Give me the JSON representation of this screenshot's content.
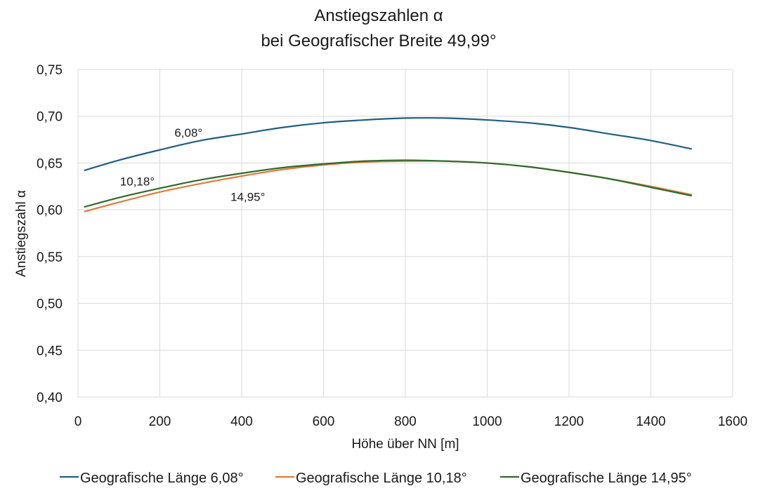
{
  "chart_data": {
    "type": "line",
    "title_line1": "Anstiegszahlen α",
    "title_line2": "bei Geografischer Breite 49,99°",
    "xlabel": "Höhe über NN [m]",
    "ylabel": "Anstiegszahl α",
    "xlim": [
      0,
      1600
    ],
    "ylim": [
      0.4,
      0.75
    ],
    "x_ticks": [
      0,
      200,
      400,
      600,
      800,
      1000,
      1200,
      1400,
      1600
    ],
    "x_tick_labels": [
      "0",
      "200",
      "400",
      "600",
      "800",
      "1000",
      "1200",
      "1400",
      "1600"
    ],
    "y_ticks": [
      0.4,
      0.45,
      0.5,
      0.55,
      0.6,
      0.65,
      0.7,
      0.75
    ],
    "y_tick_labels": [
      "0,40",
      "0,45",
      "0,50",
      "0,55",
      "0,60",
      "0,65",
      "0,70",
      "0,75"
    ],
    "grid": true,
    "legend_position": "bottom",
    "x": [
      15,
      100,
      200,
      300,
      400,
      500,
      600,
      700,
      800,
      900,
      1000,
      1100,
      1200,
      1300,
      1400,
      1500
    ],
    "series": [
      {
        "name": "Geografische Länge 6,08°",
        "color": "#1f5f7f",
        "values": [
          0.642,
          0.653,
          0.664,
          0.674,
          0.681,
          0.688,
          0.693,
          0.696,
          0.698,
          0.698,
          0.696,
          0.693,
          0.688,
          0.681,
          0.674,
          0.665
        ]
      },
      {
        "name": "Geografische Länge 10,18°",
        "color": "#e07b39",
        "values": [
          0.598,
          0.608,
          0.619,
          0.628,
          0.636,
          0.643,
          0.648,
          0.651,
          0.652,
          0.652,
          0.65,
          0.646,
          0.64,
          0.633,
          0.625,
          0.616
        ]
      },
      {
        "name": "Geografische Länge 14,95°",
        "color": "#2e6b2e",
        "values": [
          0.603,
          0.613,
          0.623,
          0.632,
          0.639,
          0.645,
          0.649,
          0.652,
          0.653,
          0.652,
          0.65,
          0.646,
          0.64,
          0.633,
          0.624,
          0.615
        ]
      }
    ],
    "annotations": [
      {
        "text": "6,08°",
        "x": 270,
        "y": 0.678
      },
      {
        "text": "10,18°",
        "x": 145,
        "y": 0.626
      },
      {
        "text": "14,95°",
        "x": 415,
        "y": 0.6095
      }
    ]
  }
}
